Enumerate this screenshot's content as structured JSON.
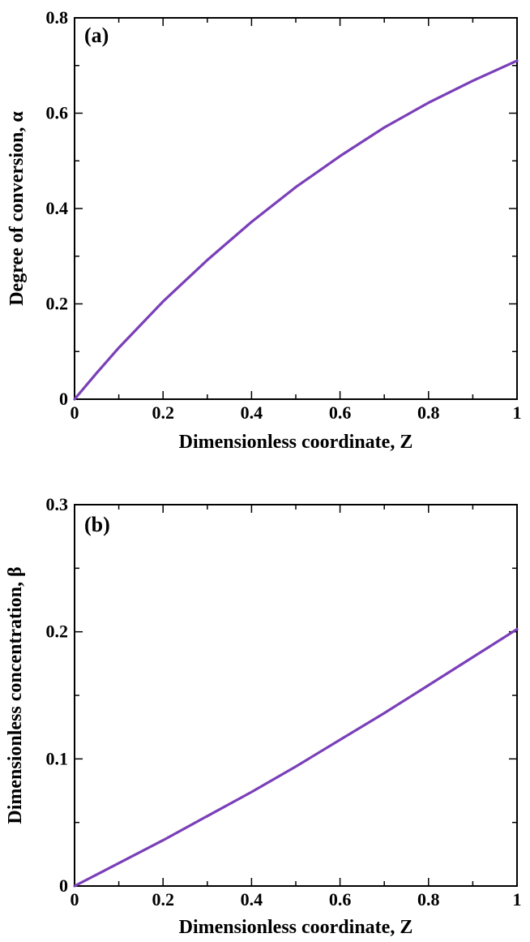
{
  "chart_data": [
    {
      "type": "line",
      "panel_label": "(a)",
      "xlabel": "Dimensionless coordinate, Z",
      "ylabel": "Degree of conversion, α",
      "xlim": [
        0,
        1
      ],
      "ylim": [
        0,
        0.8
      ],
      "xticks": [
        0,
        0.2,
        0.4,
        0.6,
        0.8,
        1
      ],
      "xtick_labels": [
        "0",
        "0.2",
        "0.4",
        "0.6",
        "0.8",
        "1"
      ],
      "yticks": [
        0,
        0.2,
        0.4,
        0.6,
        0.8
      ],
      "ytick_labels": [
        "0",
        "0.2",
        "0.4",
        "0.6",
        "0.8"
      ],
      "grid": false,
      "series": [
        {
          "color": "#7a3fb8",
          "x": [
            0,
            0.05,
            0.1,
            0.2,
            0.3,
            0.4,
            0.5,
            0.6,
            0.7,
            0.8,
            0.9,
            1.0
          ],
          "y": [
            0,
            0.055,
            0.108,
            0.205,
            0.292,
            0.372,
            0.445,
            0.51,
            0.57,
            0.622,
            0.668,
            0.71
          ]
        }
      ]
    },
    {
      "type": "line",
      "panel_label": "(b)",
      "xlabel": "Dimensionless coordinate, Z",
      "ylabel": "Dimensionless concentration, β",
      "xlim": [
        0,
        1
      ],
      "ylim": [
        0,
        0.3
      ],
      "xticks": [
        0,
        0.2,
        0.4,
        0.6,
        0.8,
        1
      ],
      "xtick_labels": [
        "0",
        "0.2",
        "0.4",
        "0.6",
        "0.8",
        "1"
      ],
      "yticks": [
        0,
        0.1,
        0.2,
        0.3
      ],
      "ytick_labels": [
        "0",
        "0.1",
        "0.2",
        "0.3"
      ],
      "grid": false,
      "series": [
        {
          "color": "#7a3fb8",
          "x": [
            0,
            0.1,
            0.2,
            0.3,
            0.4,
            0.5,
            0.6,
            0.7,
            0.8,
            0.9,
            1.0
          ],
          "y": [
            0,
            0.018,
            0.036,
            0.055,
            0.074,
            0.094,
            0.115,
            0.136,
            0.158,
            0.18,
            0.202
          ]
        }
      ]
    }
  ]
}
